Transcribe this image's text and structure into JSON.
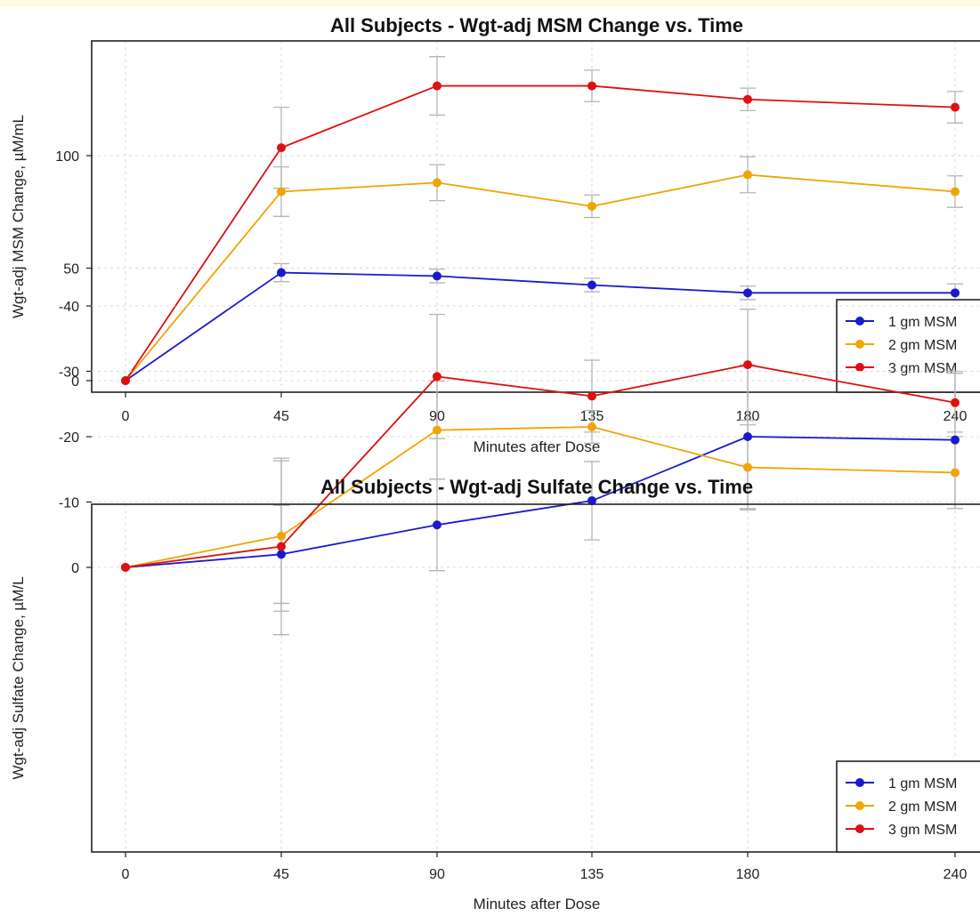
{
  "chart_data": [
    {
      "type": "line",
      "title": "All Subjects - Wgt-adj MSM Change vs. Time",
      "xlabel": "Minutes after Dose",
      "ylabel": "Wgt-adj MSM Change, µM/mL",
      "x": [
        0,
        45,
        90,
        135,
        180,
        240
      ],
      "x_tick_labels": [
        "0",
        "45",
        "90",
        "135",
        "180",
        "240"
      ],
      "y_ticks": [
        0,
        50,
        100
      ],
      "y_tick_labels": [
        "0",
        "50",
        "100"
      ],
      "ylim": [
        -5,
        150
      ],
      "grid": true,
      "legend_position": "bottom-right",
      "series": [
        {
          "name": "1  gm MSM",
          "color": "#1a1acc",
          "values": [
            0,
            48,
            46.5,
            42.5,
            39,
            39
          ],
          "error": [
            0,
            4,
            3,
            3,
            3,
            4
          ]
        },
        {
          "name": "2  gm MSM",
          "color": "#f0a500",
          "values": [
            0,
            84,
            88,
            77.5,
            91.5,
            84
          ],
          "error": [
            0,
            11,
            8,
            5,
            8,
            7
          ]
        },
        {
          "name": "3  gm MSM",
          "color": "#dd1111",
          "values": [
            0,
            103.5,
            131,
            131,
            125,
            121.5
          ],
          "error": [
            0,
            18,
            13,
            7,
            5,
            7
          ]
        }
      ]
    },
    {
      "type": "line",
      "title": "All Subjects - Wgt-adj Sulfate Change vs. Time",
      "xlabel": "Minutes after Dose",
      "ylabel": "Wgt-adj Sulfate Change, µM/L",
      "x": [
        0,
        45,
        90,
        135,
        180,
        240
      ],
      "x_tick_labels": [
        "0",
        "45",
        "90",
        "135",
        "180",
        "240"
      ],
      "y_ticks": [
        -40,
        -30,
        -20,
        -10,
        0
      ],
      "y_tick_labels": [
        "-40",
        "-30",
        "-20",
        "-10",
        "0"
      ],
      "ylim": [
        -43,
        9
      ],
      "grid": true,
      "legend_position": "bottom-right",
      "series": [
        {
          "name": "1  gm MSM",
          "color": "#1a1acc",
          "values": [
            0,
            -2,
            -6.5,
            -10.2,
            -20,
            -19.5
          ],
          "error": [
            0,
            7.5,
            7,
            6,
            11,
            10.5
          ]
        },
        {
          "name": "2  gm MSM",
          "color": "#f0a500",
          "values": [
            0,
            -4.8,
            -21,
            -21.5,
            -15.3,
            -14.5
          ],
          "error": [
            0,
            11.5,
            7.5,
            2.5,
            6.5,
            5.5
          ]
        },
        {
          "name": "3  gm MSM",
          "color": "#dd1111",
          "values": [
            0,
            -3.2,
            -29.2,
            -26.2,
            -31,
            -25.2
          ],
          "error": [
            0,
            13.5,
            9.5,
            5.5,
            8.5,
            4.5
          ]
        }
      ]
    }
  ]
}
